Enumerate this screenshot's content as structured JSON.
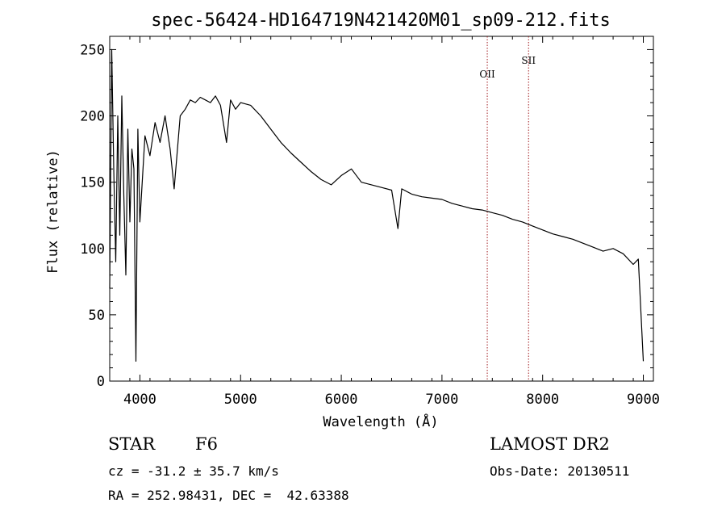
{
  "chart_data": {
    "type": "line",
    "title": "spec-56424-HD164719N421420M01_sp09-212.fits",
    "xlabel": "Wavelength (Å)",
    "ylabel": "Flux (relative)",
    "xlim": [
      3700,
      9100
    ],
    "ylim": [
      0,
      260
    ],
    "xticks": [
      4000,
      5000,
      6000,
      7000,
      8000,
      9000
    ],
    "yticks": [
      0,
      50,
      100,
      150,
      200,
      250
    ],
    "grid": false,
    "series": [
      {
        "name": "spectrum",
        "x": [
          3700,
          3720,
          3740,
          3760,
          3780,
          3800,
          3820,
          3840,
          3860,
          3880,
          3900,
          3920,
          3940,
          3960,
          3980,
          4000,
          4050,
          4100,
          4150,
          4200,
          4250,
          4300,
          4340,
          4400,
          4450,
          4500,
          4550,
          4600,
          4650,
          4700,
          4750,
          4800,
          4860,
          4900,
          4950,
          5000,
          5100,
          5200,
          5300,
          5400,
          5500,
          5600,
          5700,
          5800,
          5900,
          6000,
          6100,
          6200,
          6300,
          6400,
          6500,
          6563,
          6600,
          6700,
          6800,
          6900,
          7000,
          7100,
          7200,
          7300,
          7400,
          7500,
          7600,
          7700,
          7800,
          7900,
          8000,
          8100,
          8200,
          8300,
          8400,
          8500,
          8600,
          8700,
          8800,
          8900,
          8950,
          9000
        ],
        "y": [
          70,
          250,
          160,
          90,
          200,
          110,
          215,
          140,
          80,
          190,
          120,
          175,
          160,
          15,
          190,
          120,
          185,
          170,
          195,
          180,
          200,
          175,
          145,
          200,
          205,
          212,
          210,
          214,
          212,
          210,
          215,
          208,
          180,
          212,
          205,
          210,
          208,
          200,
          190,
          180,
          172,
          165,
          158,
          152,
          148,
          155,
          160,
          150,
          148,
          146,
          144,
          115,
          145,
          141,
          139,
          138,
          137,
          134,
          132,
          130,
          129,
          127,
          125,
          122,
          120,
          117,
          114,
          111,
          109,
          107,
          104,
          101,
          98,
          100,
          96,
          88,
          92,
          15
        ]
      }
    ],
    "annotations": [
      {
        "label": "OII",
        "x": 7450
      },
      {
        "label": "SII",
        "x": 7860
      }
    ]
  },
  "info": {
    "object_type": "STAR",
    "subclass": "F6",
    "survey": "LAMOST DR2",
    "redshift": "cz = -31.2 ± 35.7 km/s",
    "obs_date": "Obs-Date: 20130511",
    "coords": "RA = 252.98431, DEC =  42.63388"
  },
  "colors": {
    "line": "#000000",
    "marker": "#a0181c"
  }
}
